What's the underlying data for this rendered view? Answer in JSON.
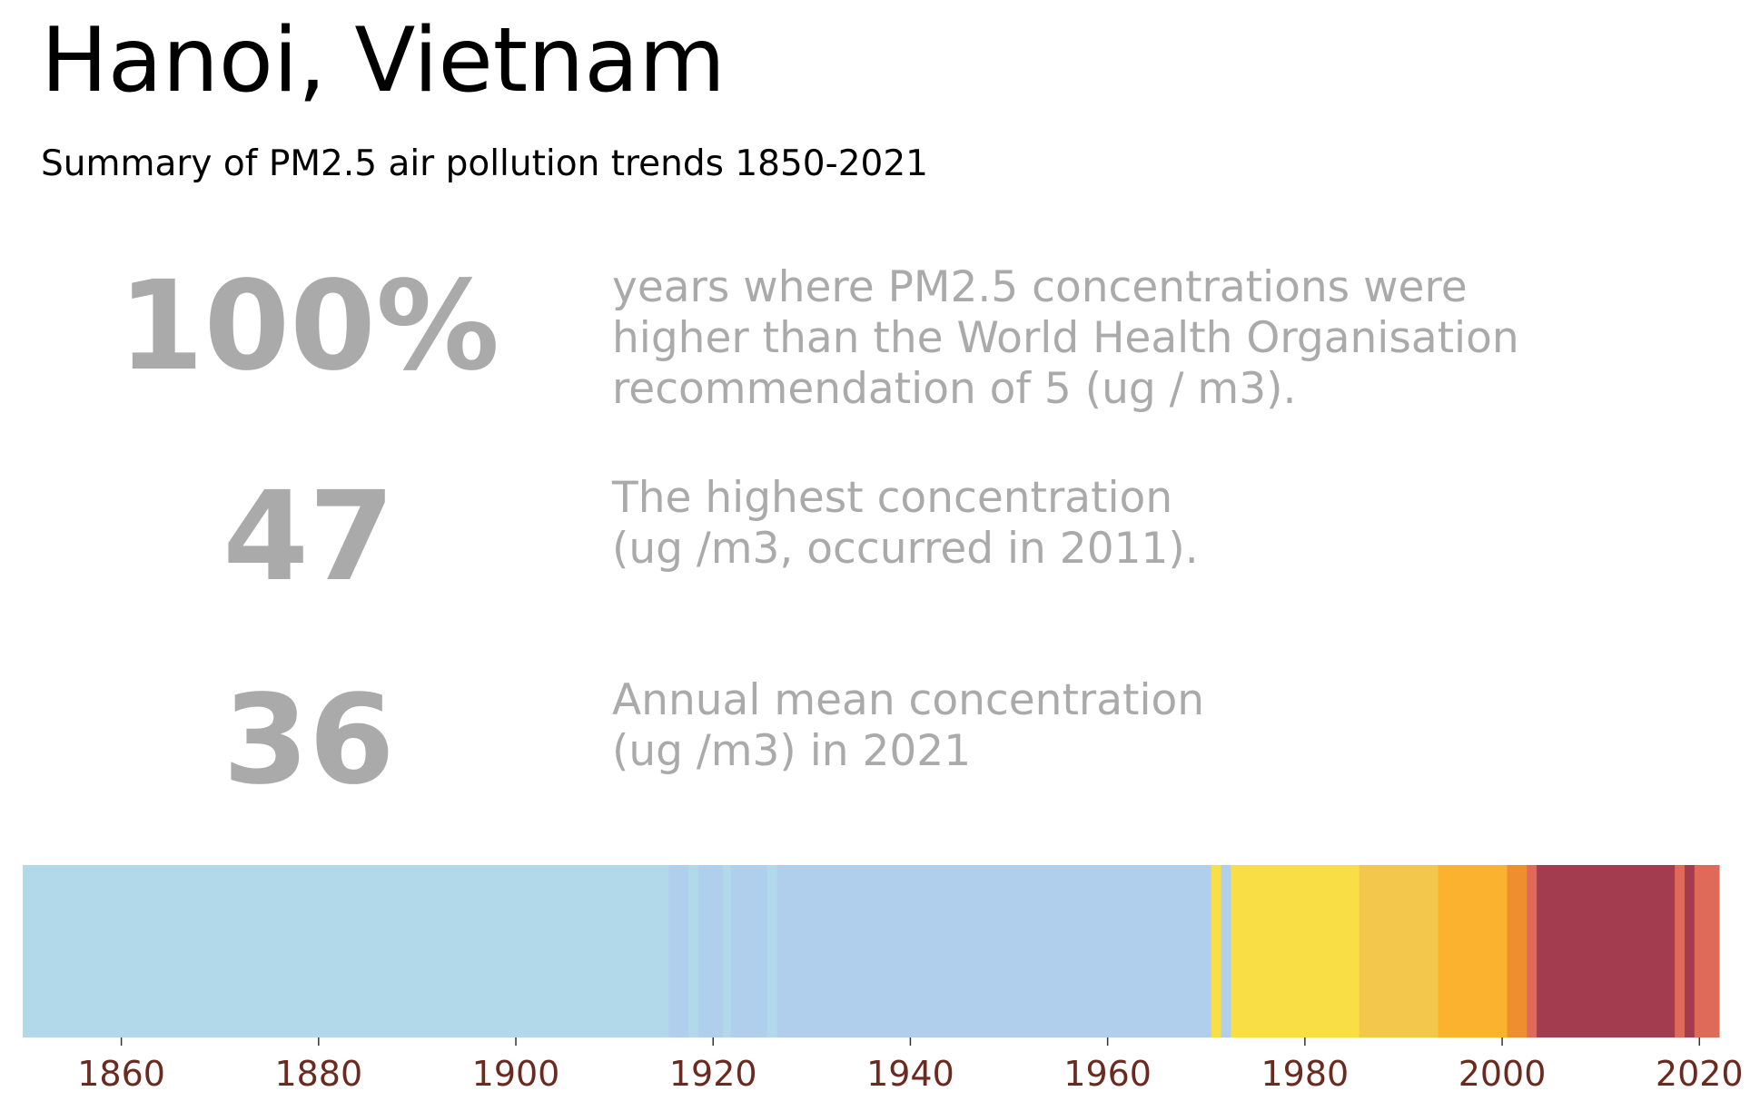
{
  "title": "Hanoi, Vietnam",
  "subtitle": "Summary of PM2.5 air pollution trends 1850-2021",
  "stats": [
    {
      "value": "100%",
      "lines": [
        "years where PM2.5 concentrations were",
        "higher than the World Health Organisation",
        "recommendation of 5 (ug / m3)."
      ]
    },
    {
      "value": "47",
      "lines": [
        "The highest concentration",
        "(ug /m3, occurred in 2011)."
      ]
    },
    {
      "value": "36",
      "lines": [
        "Annual mean concentration",
        "(ug /m3) in 2021"
      ]
    }
  ],
  "chart_data": {
    "type": "heatmap",
    "xlim": [
      1850,
      2022
    ],
    "x_ticks": [
      1860,
      1880,
      1900,
      1920,
      1940,
      1960,
      1980,
      2000,
      2020
    ],
    "tick_color": "#6b2a1f",
    "segments": [
      {
        "start": 1850,
        "end": 1915.5,
        "color": "#b1d9e9"
      },
      {
        "start": 1915.5,
        "end": 1917.5,
        "color": "#b0cfec"
      },
      {
        "start": 1917.5,
        "end": 1918.5,
        "color": "#b1d9e9"
      },
      {
        "start": 1918.5,
        "end": 1921.0,
        "color": "#b0cfec"
      },
      {
        "start": 1921.0,
        "end": 1921.8,
        "color": "#b1d9e9"
      },
      {
        "start": 1921.8,
        "end": 1925.5,
        "color": "#b0cfec"
      },
      {
        "start": 1925.5,
        "end": 1926.5,
        "color": "#b1d9e9"
      },
      {
        "start": 1926.5,
        "end": 1970.5,
        "color": "#b0cfec"
      },
      {
        "start": 1970.5,
        "end": 1971.5,
        "color": "#f9df45"
      },
      {
        "start": 1971.5,
        "end": 1972.5,
        "color": "#b0cfec"
      },
      {
        "start": 1972.5,
        "end": 1985.5,
        "color": "#f9df45"
      },
      {
        "start": 1985.5,
        "end": 1993.5,
        "color": "#f3c74b"
      },
      {
        "start": 1993.5,
        "end": 2000.5,
        "color": "#fbb22f"
      },
      {
        "start": 2000.5,
        "end": 2002.5,
        "color": "#ee8e2e"
      },
      {
        "start": 2002.5,
        "end": 2003.5,
        "color": "#e06a59"
      },
      {
        "start": 2003.5,
        "end": 2017.5,
        "color": "#a43c50"
      },
      {
        "start": 2017.5,
        "end": 2018.5,
        "color": "#e06a59"
      },
      {
        "start": 2018.5,
        "end": 2019.5,
        "color": "#a43c50"
      },
      {
        "start": 2019.5,
        "end": 2022,
        "color": "#e06a59"
      }
    ]
  }
}
